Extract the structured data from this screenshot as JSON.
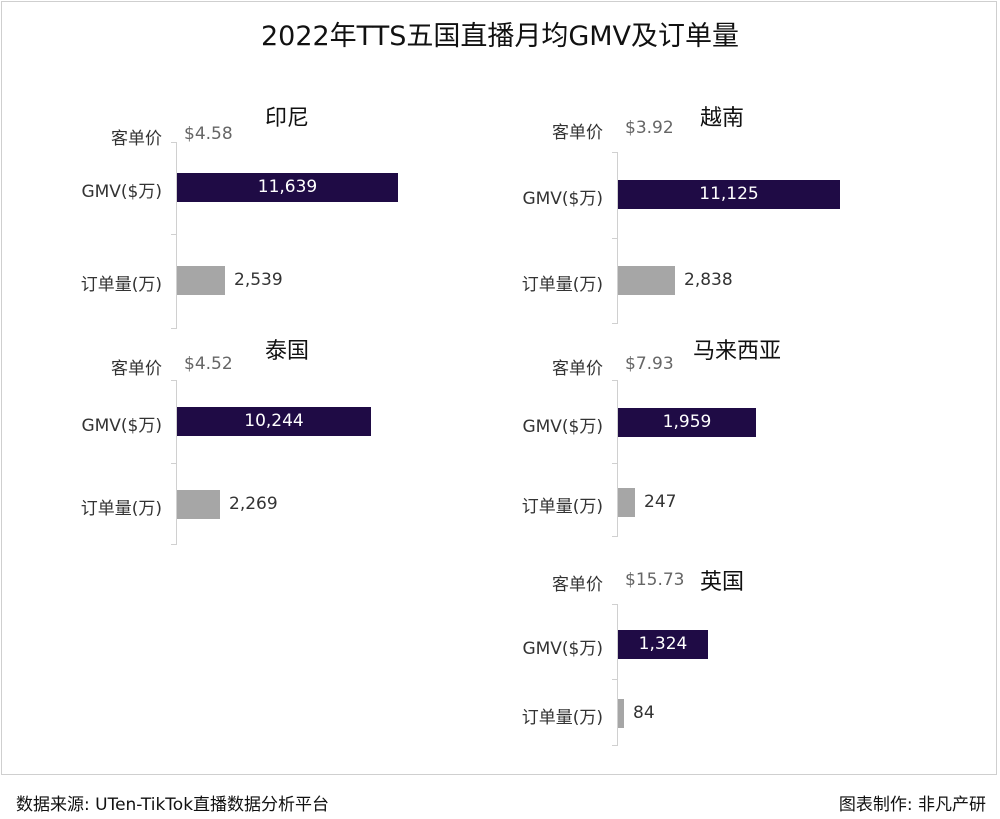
{
  "title": "2022年TTS五国直播月均GMV及订单量",
  "labels": {
    "price": "客单价",
    "gmv": "GMV($万)",
    "orders": "订单量(万)"
  },
  "footer": {
    "source": "数据来源: UTen-TikTok直播数据分析平台",
    "credit": "图表制作: 非凡产研"
  },
  "colors": {
    "gmv_bar": "#1f0b45",
    "order_bar": "#a6a6a6"
  },
  "chart_data": [
    {
      "type": "bar",
      "title": "印尼",
      "price": "$4.58",
      "categories": [
        "GMV($万)",
        "订单量(万)"
      ],
      "values": [
        11639,
        2539
      ],
      "value_labels": [
        "11,639",
        "2,539"
      ]
    },
    {
      "type": "bar",
      "title": "越南",
      "price": "$3.92",
      "categories": [
        "GMV($万)",
        "订单量(万)"
      ],
      "values": [
        11125,
        2838
      ],
      "value_labels": [
        "11,125",
        "2,838"
      ]
    },
    {
      "type": "bar",
      "title": "泰国",
      "price": "$4.52",
      "categories": [
        "GMV($万)",
        "订单量(万)"
      ],
      "values": [
        10244,
        2269
      ],
      "value_labels": [
        "10,244",
        "2,269"
      ]
    },
    {
      "type": "bar",
      "title": "马来西亚",
      "price": "$7.93",
      "categories": [
        "GMV($万)",
        "订单量(万)"
      ],
      "values": [
        1959,
        247
      ],
      "value_labels": [
        "1,959",
        "247"
      ]
    },
    {
      "type": "bar",
      "title": "英国",
      "price": "$15.73",
      "categories": [
        "GMV($万)",
        "订单量(万)"
      ],
      "values": [
        1324,
        84
      ],
      "value_labels": [
        "1,324",
        "84"
      ]
    }
  ]
}
